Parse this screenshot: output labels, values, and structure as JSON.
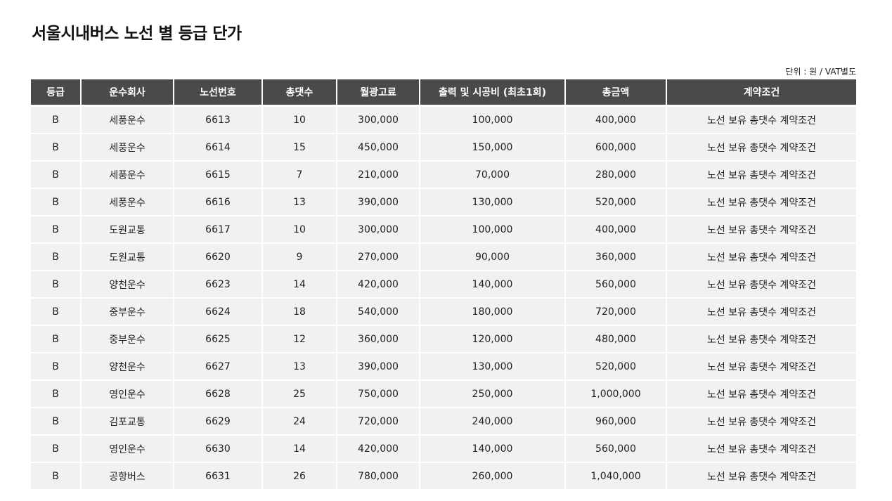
{
  "title": "서울시내버스 노선 별 등급 단가",
  "unit_note": "단위 : 원 / VAT별도",
  "columns": [
    "등급",
    "운수회사",
    "노선번호",
    "총댓수",
    "월광고료",
    "출력 및 시공비 (최초1회)",
    "총금액",
    "계약조건"
  ],
  "rows": [
    [
      "B",
      "세풍운수",
      "6613",
      "10",
      "300,000",
      "100,000",
      "400,000",
      "노선 보유 총댓수 계약조건"
    ],
    [
      "B",
      "세풍운수",
      "6614",
      "15",
      "450,000",
      "150,000",
      "600,000",
      "노선 보유 총댓수 계약조건"
    ],
    [
      "B",
      "세풍운수",
      "6615",
      "7",
      "210,000",
      "70,000",
      "280,000",
      "노선 보유 총댓수 계약조건"
    ],
    [
      "B",
      "세풍운수",
      "6616",
      "13",
      "390,000",
      "130,000",
      "520,000",
      "노선 보유 총댓수 계약조건"
    ],
    [
      "B",
      "도원교통",
      "6617",
      "10",
      "300,000",
      "100,000",
      "400,000",
      "노선 보유 총댓수 계약조건"
    ],
    [
      "B",
      "도원교통",
      "6620",
      "9",
      "270,000",
      "90,000",
      "360,000",
      "노선 보유 총댓수 계약조건"
    ],
    [
      "B",
      "양천운수",
      "6623",
      "14",
      "420,000",
      "140,000",
      "560,000",
      "노선 보유 총댓수 계약조건"
    ],
    [
      "B",
      "중부운수",
      "6624",
      "18",
      "540,000",
      "180,000",
      "720,000",
      "노선 보유 총댓수 계약조건"
    ],
    [
      "B",
      "중부운수",
      "6625",
      "12",
      "360,000",
      "120,000",
      "480,000",
      "노선 보유 총댓수 계약조건"
    ],
    [
      "B",
      "양천운수",
      "6627",
      "13",
      "390,000",
      "130,000",
      "520,000",
      "노선 보유 총댓수 계약조건"
    ],
    [
      "B",
      "영인운수",
      "6628",
      "25",
      "750,000",
      "250,000",
      "1,000,000",
      "노선 보유 총댓수 계약조건"
    ],
    [
      "B",
      "김포교통",
      "6629",
      "24",
      "720,000",
      "240,000",
      "960,000",
      "노선 보유 총댓수 계약조건"
    ],
    [
      "B",
      "영인운수",
      "6630",
      "14",
      "420,000",
      "140,000",
      "560,000",
      "노선 보유 총댓수 계약조건"
    ],
    [
      "B",
      "공항버스",
      "6631",
      "26",
      "780,000",
      "260,000",
      "1,040,000",
      "노선 보유 총댓수 계약조건"
    ]
  ],
  "colors": {
    "header_bg": "#4a4a4a",
    "header_text": "#ffffff",
    "cell_bg": "#f1f1f1"
  }
}
